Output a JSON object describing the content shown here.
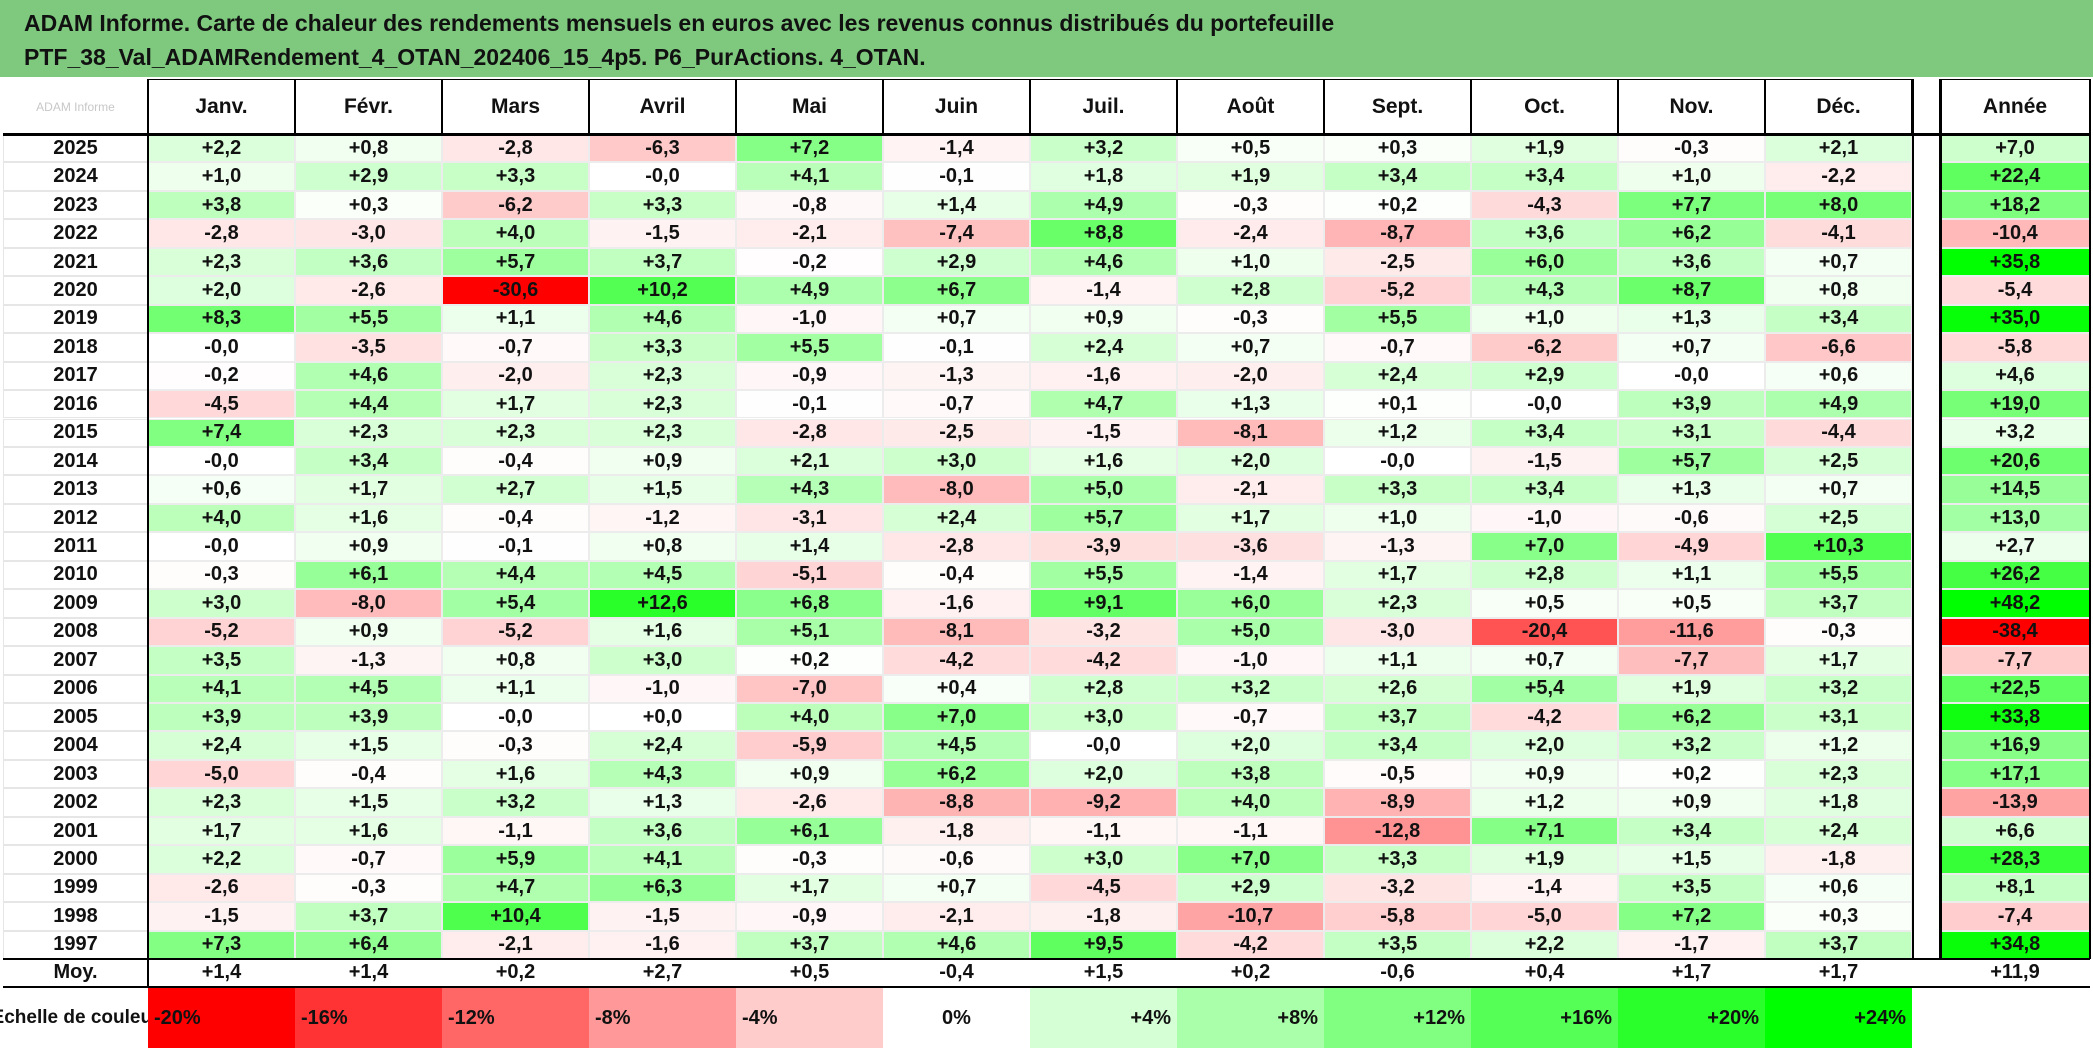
{
  "header": {
    "title_line1": "ADAM Informe. Carte de chaleur des rendements mensuels en euros avec les revenus connus distribués du portefeuille",
    "title_line2": "PTF_38_Val_ADAMRendement_4_OTAN_202406_15_4p5. P6_PurActions. 4_OTAN."
  },
  "watermark": "ADAM Informe",
  "colors": {
    "header_bg": "#7fc97f",
    "negative": "#ff0000",
    "positive": "#00ff00",
    "neutral": "#ffffff"
  },
  "chart_data": {
    "type": "heatmap",
    "columns": [
      "Janv.",
      "Févr.",
      "Mars",
      "Avril",
      "Mai",
      "Juin",
      "Juil.",
      "Août",
      "Sept.",
      "Oct.",
      "Nov.",
      "Déc."
    ],
    "year_header": "Année",
    "rows": [
      {
        "label": "2025",
        "months": [
          "+2,2",
          "+0,8",
          "-2,8",
          "-6,3",
          "+7,2",
          "-1,4",
          "+3,2",
          "+0,5",
          "+0,3",
          "+1,9",
          "-0,3",
          "+2,1"
        ],
        "year": "+7,0"
      },
      {
        "label": "2024",
        "months": [
          "+1,0",
          "+2,9",
          "+3,3",
          "-0,0",
          "+4,1",
          "-0,1",
          "+1,8",
          "+1,9",
          "+3,4",
          "+3,4",
          "+1,0",
          "-2,2"
        ],
        "year": "+22,4"
      },
      {
        "label": "2023",
        "months": [
          "+3,8",
          "+0,3",
          "-6,2",
          "+3,3",
          "-0,8",
          "+1,4",
          "+4,9",
          "-0,3",
          "+0,2",
          "-4,3",
          "+7,7",
          "+8,0"
        ],
        "year": "+18,2"
      },
      {
        "label": "2022",
        "months": [
          "-2,8",
          "-3,0",
          "+4,0",
          "-1,5",
          "-2,1",
          "-7,4",
          "+8,8",
          "-2,4",
          "-8,7",
          "+3,6",
          "+6,2",
          "-4,1"
        ],
        "year": "-10,4"
      },
      {
        "label": "2021",
        "months": [
          "+2,3",
          "+3,6",
          "+5,7",
          "+3,7",
          "-0,2",
          "+2,9",
          "+4,6",
          "+1,0",
          "-2,5",
          "+6,0",
          "+3,6",
          "+0,7"
        ],
        "year": "+35,8"
      },
      {
        "label": "2020",
        "months": [
          "+2,0",
          "-2,6",
          "-30,6",
          "+10,2",
          "+4,9",
          "+6,7",
          "-1,4",
          "+2,8",
          "-5,2",
          "+4,3",
          "+8,7",
          "+0,8"
        ],
        "year": "-5,4"
      },
      {
        "label": "2019",
        "months": [
          "+8,3",
          "+5,5",
          "+1,1",
          "+4,6",
          "-1,0",
          "+0,7",
          "+0,9",
          "-0,3",
          "+5,5",
          "+1,0",
          "+1,3",
          "+3,4"
        ],
        "year": "+35,0"
      },
      {
        "label": "2018",
        "months": [
          "-0,0",
          "-3,5",
          "-0,7",
          "+3,3",
          "+5,5",
          "-0,1",
          "+2,4",
          "+0,7",
          "-0,7",
          "-6,2",
          "+0,7",
          "-6,6"
        ],
        "year": "-5,8"
      },
      {
        "label": "2017",
        "months": [
          "-0,2",
          "+4,6",
          "-2,0",
          "+2,3",
          "-0,9",
          "-1,3",
          "-1,6",
          "-2,0",
          "+2,4",
          "+2,9",
          "-0,0",
          "+0,6"
        ],
        "year": "+4,6"
      },
      {
        "label": "2016",
        "months": [
          "-4,5",
          "+4,4",
          "+1,7",
          "+2,3",
          "-0,1",
          "-0,7",
          "+4,7",
          "+1,3",
          "+0,1",
          "-0,0",
          "+3,9",
          "+4,9"
        ],
        "year": "+19,0"
      },
      {
        "label": "2015",
        "months": [
          "+7,4",
          "+2,3",
          "+2,3",
          "+2,3",
          "-2,8",
          "-2,5",
          "-1,5",
          "-8,1",
          "+1,2",
          "+3,4",
          "+3,1",
          "-4,4"
        ],
        "year": "+3,2"
      },
      {
        "label": "2014",
        "months": [
          "-0,0",
          "+3,4",
          "-0,4",
          "+0,9",
          "+2,1",
          "+3,0",
          "+1,6",
          "+2,0",
          "-0,0",
          "-1,5",
          "+5,7",
          "+2,5"
        ],
        "year": "+20,6"
      },
      {
        "label": "2013",
        "months": [
          "+0,6",
          "+1,7",
          "+2,7",
          "+1,5",
          "+4,3",
          "-8,0",
          "+5,0",
          "-2,1",
          "+3,3",
          "+3,4",
          "+1,3",
          "+0,7"
        ],
        "year": "+14,5"
      },
      {
        "label": "2012",
        "months": [
          "+4,0",
          "+1,6",
          "-0,4",
          "-1,2",
          "-3,1",
          "+2,4",
          "+5,7",
          "+1,7",
          "+1,0",
          "-1,0",
          "-0,6",
          "+2,5"
        ],
        "year": "+13,0"
      },
      {
        "label": "2011",
        "months": [
          "-0,0",
          "+0,9",
          "-0,1",
          "+0,8",
          "+1,4",
          "-2,8",
          "-3,9",
          "-3,6",
          "-1,3",
          "+7,0",
          "-4,9",
          "+10,3"
        ],
        "year": "+2,7"
      },
      {
        "label": "2010",
        "months": [
          "-0,3",
          "+6,1",
          "+4,4",
          "+4,5",
          "-5,1",
          "-0,4",
          "+5,5",
          "-1,4",
          "+1,7",
          "+2,8",
          "+1,1",
          "+5,5"
        ],
        "year": "+26,2"
      },
      {
        "label": "2009",
        "months": [
          "+3,0",
          "-8,0",
          "+5,4",
          "+12,6",
          "+6,8",
          "-1,6",
          "+9,1",
          "+6,0",
          "+2,3",
          "+0,5",
          "+0,5",
          "+3,7"
        ],
        "year": "+48,2"
      },
      {
        "label": "2008",
        "months": [
          "-5,2",
          "+0,9",
          "-5,2",
          "+1,6",
          "+5,1",
          "-8,1",
          "-3,2",
          "+5,0",
          "-3,0",
          "-20,4",
          "-11,6",
          "-0,3"
        ],
        "year": "-38,4"
      },
      {
        "label": "2007",
        "months": [
          "+3,5",
          "-1,3",
          "+0,8",
          "+3,0",
          "+0,2",
          "-4,2",
          "-4,2",
          "-1,0",
          "+1,1",
          "+0,7",
          "-7,7",
          "+1,7"
        ],
        "year": "-7,7"
      },
      {
        "label": "2006",
        "months": [
          "+4,1",
          "+4,5",
          "+1,1",
          "-1,0",
          "-7,0",
          "+0,4",
          "+2,8",
          "+3,2",
          "+2,6",
          "+5,4",
          "+1,9",
          "+3,2"
        ],
        "year": "+22,5"
      },
      {
        "label": "2005",
        "months": [
          "+3,9",
          "+3,9",
          "-0,0",
          "+0,0",
          "+4,0",
          "+7,0",
          "+3,0",
          "-0,7",
          "+3,7",
          "-4,2",
          "+6,2",
          "+3,1"
        ],
        "year": "+33,8"
      },
      {
        "label": "2004",
        "months": [
          "+2,4",
          "+1,5",
          "-0,3",
          "+2,4",
          "-5,9",
          "+4,5",
          "-0,0",
          "+2,0",
          "+3,4",
          "+2,0",
          "+3,2",
          "+1,2"
        ],
        "year": "+16,9"
      },
      {
        "label": "2003",
        "months": [
          "-5,0",
          "-0,4",
          "+1,6",
          "+4,3",
          "+0,9",
          "+6,2",
          "+2,0",
          "+3,8",
          "-0,5",
          "+0,9",
          "+0,2",
          "+2,3"
        ],
        "year": "+17,1"
      },
      {
        "label": "2002",
        "months": [
          "+2,3",
          "+1,5",
          "+3,2",
          "+1,3",
          "-2,6",
          "-8,8",
          "-9,2",
          "+4,0",
          "-8,9",
          "+1,2",
          "+0,9",
          "+1,8"
        ],
        "year": "-13,9"
      },
      {
        "label": "2001",
        "months": [
          "+1,7",
          "+1,6",
          "-1,1",
          "+3,6",
          "+6,1",
          "-1,8",
          "-1,1",
          "-1,1",
          "-12,8",
          "+7,1",
          "+3,4",
          "+2,4"
        ],
        "year": "+6,6"
      },
      {
        "label": "2000",
        "months": [
          "+2,2",
          "-0,7",
          "+5,9",
          "+4,1",
          "-0,3",
          "-0,6",
          "+3,0",
          "+7,0",
          "+3,3",
          "+1,9",
          "+1,5",
          "-1,8"
        ],
        "year": "+28,3"
      },
      {
        "label": "1999",
        "months": [
          "-2,6",
          "-0,3",
          "+4,7",
          "+6,3",
          "+1,7",
          "+0,7",
          "-4,5",
          "+2,9",
          "-3,2",
          "-1,4",
          "+3,5",
          "+0,6"
        ],
        "year": "+8,1"
      },
      {
        "label": "1998",
        "months": [
          "-1,5",
          "+3,7",
          "+10,4",
          "-1,5",
          "-0,9",
          "-2,1",
          "-1,8",
          "-10,7",
          "-5,8",
          "-5,0",
          "+7,2",
          "+0,3"
        ],
        "year": "-7,4"
      },
      {
        "label": "1997",
        "months": [
          "+7,3",
          "+6,4",
          "-2,1",
          "-1,6",
          "+3,7",
          "+4,6",
          "+9,5",
          "-4,2",
          "+3,5",
          "+2,2",
          "-1,7",
          "+3,7"
        ],
        "year": "+34,8"
      }
    ],
    "average": {
      "label": "Moy.",
      "months": [
        "+1,4",
        "+1,4",
        "+0,2",
        "+2,7",
        "+0,5",
        "-0,4",
        "+1,5",
        "+0,2",
        "-0,6",
        "+0,4",
        "+1,7",
        "+1,7"
      ],
      "year": "+11,9"
    },
    "scale": {
      "label": "Echelle de couleur",
      "steps": [
        {
          "text": "-20%",
          "value": -20
        },
        {
          "text": "-16%",
          "value": -16
        },
        {
          "text": "-12%",
          "value": -12
        },
        {
          "text": "-8%",
          "value": -8
        },
        {
          "text": "-4%",
          "value": -4
        },
        {
          "text": "0%",
          "value": 0
        },
        {
          "text": "+4%",
          "value": 4
        },
        {
          "text": "+8%",
          "value": 8
        },
        {
          "text": "+12%",
          "value": 12
        },
        {
          "text": "+16%",
          "value": 16
        },
        {
          "text": "+20%",
          "value": 20
        },
        {
          "text": "+24%",
          "value": 24
        }
      ]
    },
    "color_scale": {
      "month_min": -30,
      "month_max": 15,
      "year_min": -38,
      "year_max": 36
    }
  }
}
